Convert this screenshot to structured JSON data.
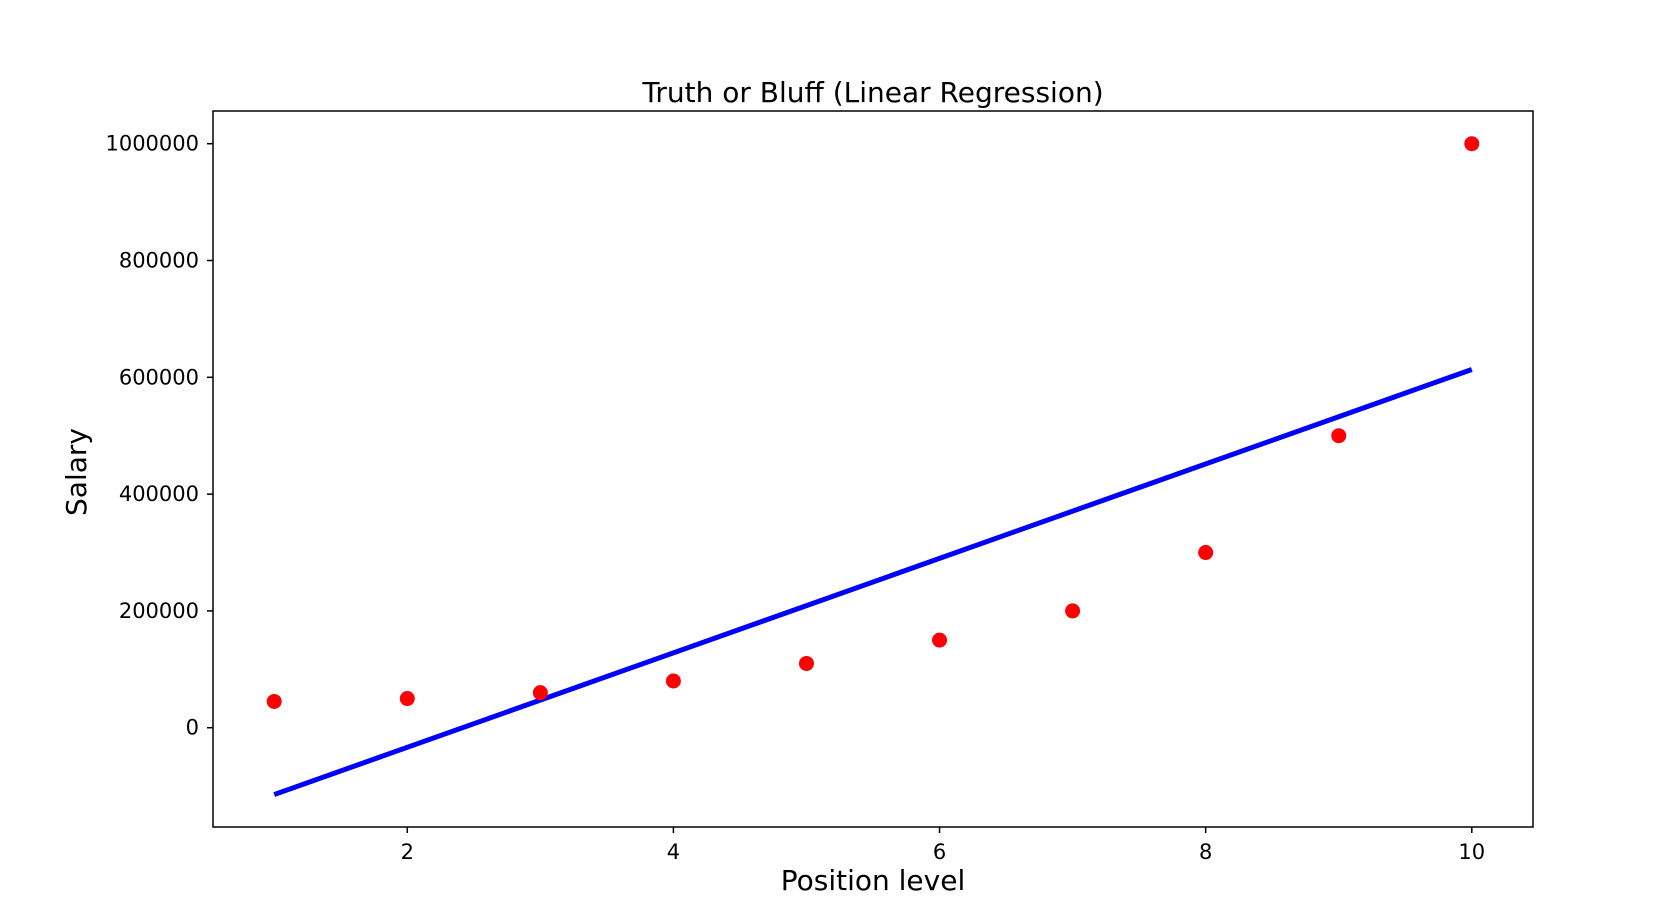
{
  "chart_data": {
    "type": "scatter",
    "title": "Truth or Bluff (Linear Regression)",
    "xlabel": "Position level",
    "ylabel": "Salary",
    "xlim": [
      0.54,
      10.46
    ],
    "ylim": [
      -170000,
      1056000
    ],
    "xticks": [
      2,
      4,
      6,
      8,
      10
    ],
    "yticks": [
      0,
      200000,
      400000,
      600000,
      800000,
      1000000
    ],
    "grid": false,
    "legend": "none",
    "series": [
      {
        "kind": "scatter",
        "color": "#ff0000",
        "x": [
          1,
          2,
          3,
          4,
          5,
          6,
          7,
          8,
          9,
          10
        ],
        "y": [
          45000,
          50000,
          60000,
          80000,
          110000,
          150000,
          200000,
          300000,
          500000,
          1000000
        ]
      },
      {
        "kind": "line",
        "color": "#0000ff",
        "x": [
          1,
          10
        ],
        "y": [
          -114455,
          613424
        ]
      }
    ]
  }
}
